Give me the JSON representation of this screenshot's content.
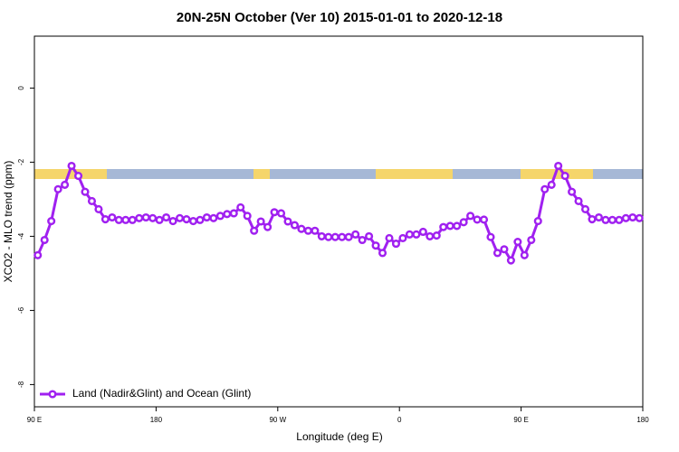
{
  "chart_data": {
    "type": "line",
    "title": "20N-25N October (Ver 10)   2015-01-01 to 2020-12-18",
    "x_label": "Longitude (deg E)",
    "y_label": "XCO2 - MLO trend (ppm)",
    "x": [
      92.5,
      97.5,
      102.5,
      107.5,
      112.5,
      117.5,
      122.5,
      127.5,
      132.5,
      137.5,
      142.5,
      147.5,
      152.5,
      157.5,
      162.5,
      167.5,
      172.5,
      177.5,
      182.5,
      187.5,
      192.5,
      197.5,
      202.5,
      207.5,
      212.5,
      217.5,
      222.5,
      227.5,
      232.5,
      237.5,
      242.5,
      247.5,
      252.5,
      257.5,
      262.5,
      267.5,
      272.5,
      277.5,
      282.5,
      287.5,
      292.5,
      297.5,
      302.5,
      307.5,
      312.5,
      317.5,
      322.5,
      327.5,
      332.5,
      337.5,
      342.5,
      347.5,
      352.5,
      357.5,
      362.5,
      367.5,
      372.5,
      377.5,
      382.5,
      387.5,
      392.5,
      397.5,
      402.5,
      407.5,
      412.5,
      417.5,
      422.5,
      427.5,
      432.5,
      437.5,
      442.5,
      447.5,
      452.5,
      457.5,
      462.5,
      467.5,
      472.5,
      477.5,
      482.5,
      487.5,
      492.5,
      497.5,
      502.5,
      507.5,
      512.5,
      517.5,
      522.5,
      527.5,
      532.5,
      537.5
    ],
    "series": [
      {
        "name": "Land (Nadir&Glint) and Ocean (Glint)",
        "color": "#a020f0",
        "values": [
          -4.51,
          -4.1,
          -3.59,
          -2.73,
          -2.61,
          -2.1,
          -2.37,
          -2.8,
          -3.05,
          -3.27,
          -3.54,
          -3.49,
          -3.56,
          -3.56,
          -3.56,
          -3.51,
          -3.49,
          -3.51,
          -3.56,
          -3.49,
          -3.59,
          -3.51,
          -3.54,
          -3.59,
          -3.56,
          -3.49,
          -3.51,
          -3.45,
          -3.4,
          -3.38,
          -3.22,
          -3.45,
          -3.85,
          -3.6,
          -3.75,
          -3.35,
          -3.38,
          -3.6,
          -3.7,
          -3.8,
          -3.85,
          -3.85,
          -4.0,
          -4.02,
          -4.02,
          -4.02,
          -4.02,
          -3.95,
          -4.1,
          -4.0,
          -4.25,
          -4.45,
          -4.05,
          -4.2,
          -4.05,
          -3.95,
          -3.95,
          -3.88,
          -4.0,
          -3.98,
          -3.75,
          -3.72,
          -3.72,
          -3.62,
          -3.45,
          -3.55,
          -3.55,
          -4.02,
          -4.45,
          -4.35,
          -4.65,
          -4.15,
          -4.51,
          -4.1,
          -3.59,
          -2.73,
          -2.61,
          -2.1,
          -2.37,
          -2.8,
          -3.05,
          -3.27,
          -3.54,
          -3.49,
          -3.56,
          -3.56,
          -3.56,
          -3.51,
          -3.49,
          -3.51
        ]
      }
    ],
    "xlim": [
      90,
      540
    ],
    "xticks": [
      {
        "value": 90,
        "label": "90 E"
      },
      180,
      {
        "value": 270,
        "label": "90 W"
      },
      {
        "value": 360,
        "label": "0"
      },
      {
        "value": 450,
        "label": "90 E"
      },
      {
        "value": 540,
        "label": "180"
      }
    ],
    "ylim": [
      -8.6,
      1.4
    ],
    "yticks": [
      0,
      -2,
      -4,
      -6,
      -8
    ],
    "legend": "bottom-left"
  }
}
